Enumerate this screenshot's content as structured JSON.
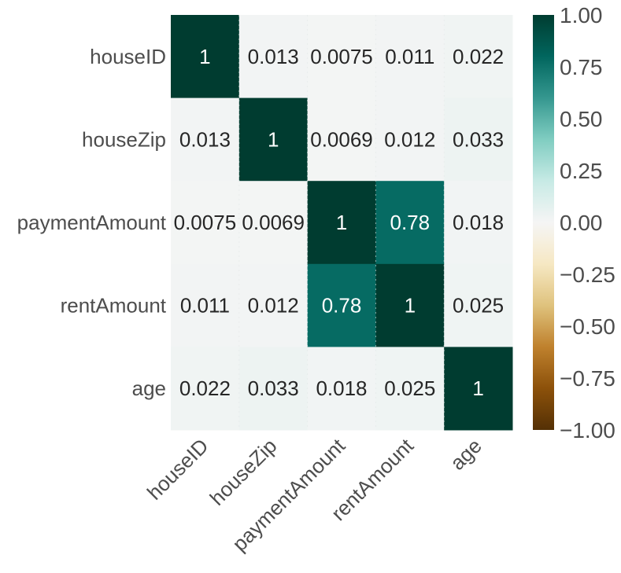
{
  "chart_data": {
    "type": "heatmap",
    "title": "",
    "row_labels": [
      "houseID",
      "houseZip",
      "paymentAmount",
      "rentAmount",
      "age"
    ],
    "col_labels": [
      "houseID",
      "houseZip",
      "paymentAmount",
      "rentAmount",
      "age"
    ],
    "values": [
      [
        1,
        0.013,
        0.0075,
        0.011,
        0.022
      ],
      [
        0.013,
        1,
        0.0069,
        0.012,
        0.033
      ],
      [
        0.0075,
        0.0069,
        1,
        0.78,
        0.018
      ],
      [
        0.011,
        0.012,
        0.78,
        1,
        0.025
      ],
      [
        0.022,
        0.033,
        0.018,
        0.025,
        1
      ]
    ],
    "annotations": [
      [
        "1",
        "0.013",
        "0.0075",
        "0.011",
        "0.022"
      ],
      [
        "0.013",
        "1",
        "0.0069",
        "0.012",
        "0.033"
      ],
      [
        "0.0075",
        "0.0069",
        "1",
        "0.78",
        "0.018"
      ],
      [
        "0.011",
        "0.012",
        "0.78",
        "1",
        "0.025"
      ],
      [
        "0.022",
        "0.033",
        "0.018",
        "0.025",
        "1"
      ]
    ],
    "colormap": "BrBG",
    "vmin": -1,
    "vmax": 1,
    "colorbar_ticks": [
      1,
      0.75,
      0.5,
      0.25,
      0,
      -0.25,
      -0.5,
      -0.75,
      -1
    ],
    "colorbar_tick_labels": [
      "1.00",
      "0.75",
      "0.50",
      "0.25",
      "0.00",
      "−0.25",
      "−0.50",
      "−0.75",
      "−1.00"
    ],
    "grid": true,
    "colors": {
      "label_text": "#4d4d4d",
      "annotation_dark_text": "#262626",
      "annotation_light_text": "#ffffff",
      "grid_line": "#e4e8e8"
    }
  }
}
